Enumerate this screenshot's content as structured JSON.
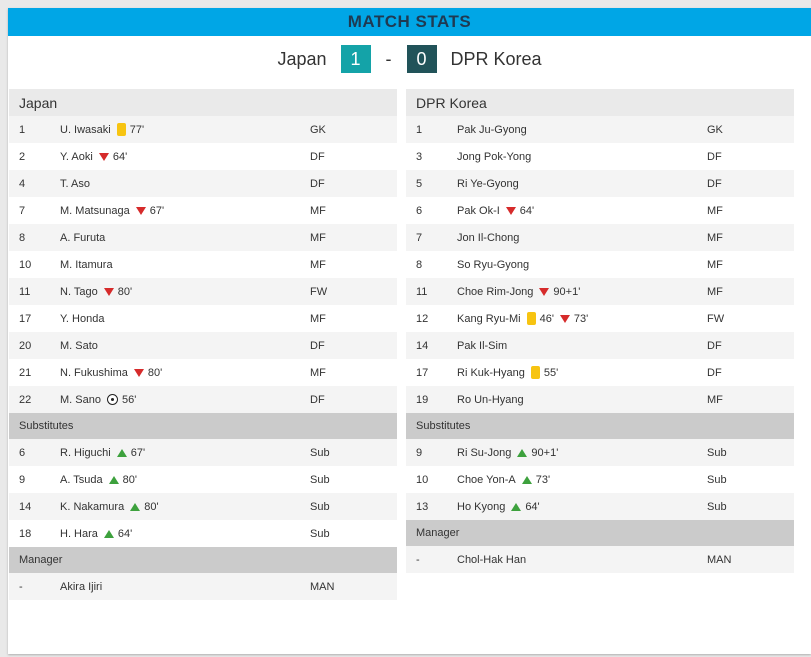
{
  "title": "MATCH STATS",
  "score": {
    "home_team": "Japan",
    "home_goals": "1",
    "separator": "-",
    "away_goals": "0",
    "away_team": "DPR Korea"
  },
  "colors": {
    "banner": "#00a6e6",
    "home_score_bg": "#14a3a8",
    "away_score_bg": "#215359",
    "yellow_card": "#f7c411",
    "sub_off": "#d62b2b",
    "sub_on": "#3da13d"
  },
  "teams": [
    {
      "name": "Japan",
      "players": [
        {
          "num": "1",
          "name": "U. Iwasaki",
          "pos": "GK",
          "events": [
            {
              "icon": "yellow-card",
              "minute": "77'"
            }
          ]
        },
        {
          "num": "2",
          "name": "Y. Aoki",
          "pos": "DF",
          "events": [
            {
              "icon": "sub-off",
              "minute": "64'"
            }
          ]
        },
        {
          "num": "4",
          "name": "T. Aso",
          "pos": "DF",
          "events": []
        },
        {
          "num": "7",
          "name": "M. Matsunaga",
          "pos": "MF",
          "events": [
            {
              "icon": "sub-off",
              "minute": "67'"
            }
          ]
        },
        {
          "num": "8",
          "name": "A. Furuta",
          "pos": "MF",
          "events": []
        },
        {
          "num": "10",
          "name": "M. Itamura",
          "pos": "MF",
          "events": []
        },
        {
          "num": "11",
          "name": "N. Tago",
          "pos": "FW",
          "events": [
            {
              "icon": "sub-off",
              "minute": "80'"
            }
          ]
        },
        {
          "num": "17",
          "name": "Y. Honda",
          "pos": "MF",
          "events": []
        },
        {
          "num": "20",
          "name": "M. Sato",
          "pos": "DF",
          "events": []
        },
        {
          "num": "21",
          "name": "N. Fukushima",
          "pos": "MF",
          "events": [
            {
              "icon": "sub-off",
              "minute": "80'"
            }
          ]
        },
        {
          "num": "22",
          "name": "M. Sano",
          "pos": "DF",
          "events": [
            {
              "icon": "goal-ball",
              "minute": "56'"
            }
          ]
        }
      ],
      "subs_label": "Substitutes",
      "subs": [
        {
          "num": "6",
          "name": "R. Higuchi",
          "pos": "Sub",
          "events": [
            {
              "icon": "sub-on",
              "minute": "67'"
            }
          ]
        },
        {
          "num": "9",
          "name": "A. Tsuda",
          "pos": "Sub",
          "events": [
            {
              "icon": "sub-on",
              "minute": "80'"
            }
          ]
        },
        {
          "num": "14",
          "name": "K. Nakamura",
          "pos": "Sub",
          "events": [
            {
              "icon": "sub-on",
              "minute": "80'"
            }
          ]
        },
        {
          "num": "18",
          "name": "H. Hara",
          "pos": "Sub",
          "events": [
            {
              "icon": "sub-on",
              "minute": "64'"
            }
          ]
        }
      ],
      "manager_label": "Manager",
      "manager": {
        "num": "-",
        "name": "Akira Ijiri",
        "pos": "MAN"
      }
    },
    {
      "name": "DPR Korea",
      "players": [
        {
          "num": "1",
          "name": "Pak Ju-Gyong",
          "pos": "GK",
          "events": []
        },
        {
          "num": "3",
          "name": "Jong Pok-Yong",
          "pos": "DF",
          "events": []
        },
        {
          "num": "5",
          "name": "Ri Ye-Gyong",
          "pos": "DF",
          "events": []
        },
        {
          "num": "6",
          "name": "Pak Ok-I",
          "pos": "MF",
          "events": [
            {
              "icon": "sub-off",
              "minute": "64'"
            }
          ]
        },
        {
          "num": "7",
          "name": "Jon Il-Chong",
          "pos": "MF",
          "events": []
        },
        {
          "num": "8",
          "name": "So Ryu-Gyong",
          "pos": "MF",
          "events": []
        },
        {
          "num": "11",
          "name": "Choe Rim-Jong",
          "pos": "MF",
          "events": [
            {
              "icon": "sub-off",
              "minute": "90+1'"
            }
          ]
        },
        {
          "num": "12",
          "name": "Kang Ryu-Mi",
          "pos": "FW",
          "events": [
            {
              "icon": "yellow-card",
              "minute": "46'"
            },
            {
              "icon": "sub-off",
              "minute": "73'"
            }
          ]
        },
        {
          "num": "14",
          "name": "Pak Il-Sim",
          "pos": "DF",
          "events": []
        },
        {
          "num": "17",
          "name": "Ri Kuk-Hyang",
          "pos": "DF",
          "events": [
            {
              "icon": "yellow-card",
              "minute": "55'"
            }
          ]
        },
        {
          "num": "19",
          "name": "Ro Un-Hyang",
          "pos": "MF",
          "events": []
        }
      ],
      "subs_label": "Substitutes",
      "subs": [
        {
          "num": "9",
          "name": "Ri Su-Jong",
          "pos": "Sub",
          "events": [
            {
              "icon": "sub-on",
              "minute": "90+1'"
            }
          ]
        },
        {
          "num": "10",
          "name": "Choe Yon-A",
          "pos": "Sub",
          "events": [
            {
              "icon": "sub-on",
              "minute": "73'"
            }
          ]
        },
        {
          "num": "13",
          "name": "Ho Kyong",
          "pos": "Sub",
          "events": [
            {
              "icon": "sub-on",
              "minute": "64'"
            }
          ]
        }
      ],
      "manager_label": "Manager",
      "manager": {
        "num": "-",
        "name": "Chol-Hak Han",
        "pos": "MAN"
      }
    }
  ]
}
